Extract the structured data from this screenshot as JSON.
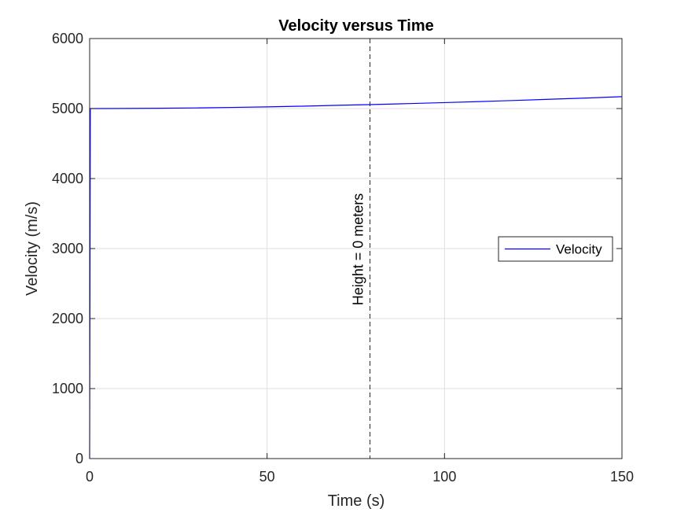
{
  "chart_data": {
    "type": "line",
    "title": "Velocity versus Time",
    "xlabel": "Time (s)",
    "ylabel": "Velocity (m/s)",
    "xlim": [
      0,
      150
    ],
    "ylim": [
      0,
      6000
    ],
    "xticks": [
      0,
      50,
      100,
      150
    ],
    "yticks": [
      0,
      1000,
      2000,
      3000,
      4000,
      5000,
      6000
    ],
    "grid": true,
    "legend": {
      "placement": "right",
      "entries": [
        "Velocity"
      ]
    },
    "series": [
      {
        "name": "Velocity",
        "color": "#0000ff",
        "x": [
          0,
          0.2,
          10,
          20,
          30,
          40,
          50,
          60,
          70,
          80,
          90,
          100,
          110,
          120,
          130,
          140,
          150
        ],
        "y": [
          0,
          5000,
          5001,
          5004,
          5009,
          5016,
          5024,
          5034,
          5046,
          5058,
          5071,
          5085,
          5100,
          5116,
          5133,
          5150,
          5170
        ]
      }
    ],
    "annotations": [
      {
        "type": "vertical-line",
        "x": 79,
        "style": "dashed",
        "color": "#262626",
        "label": "Height = 0 meters"
      }
    ]
  }
}
